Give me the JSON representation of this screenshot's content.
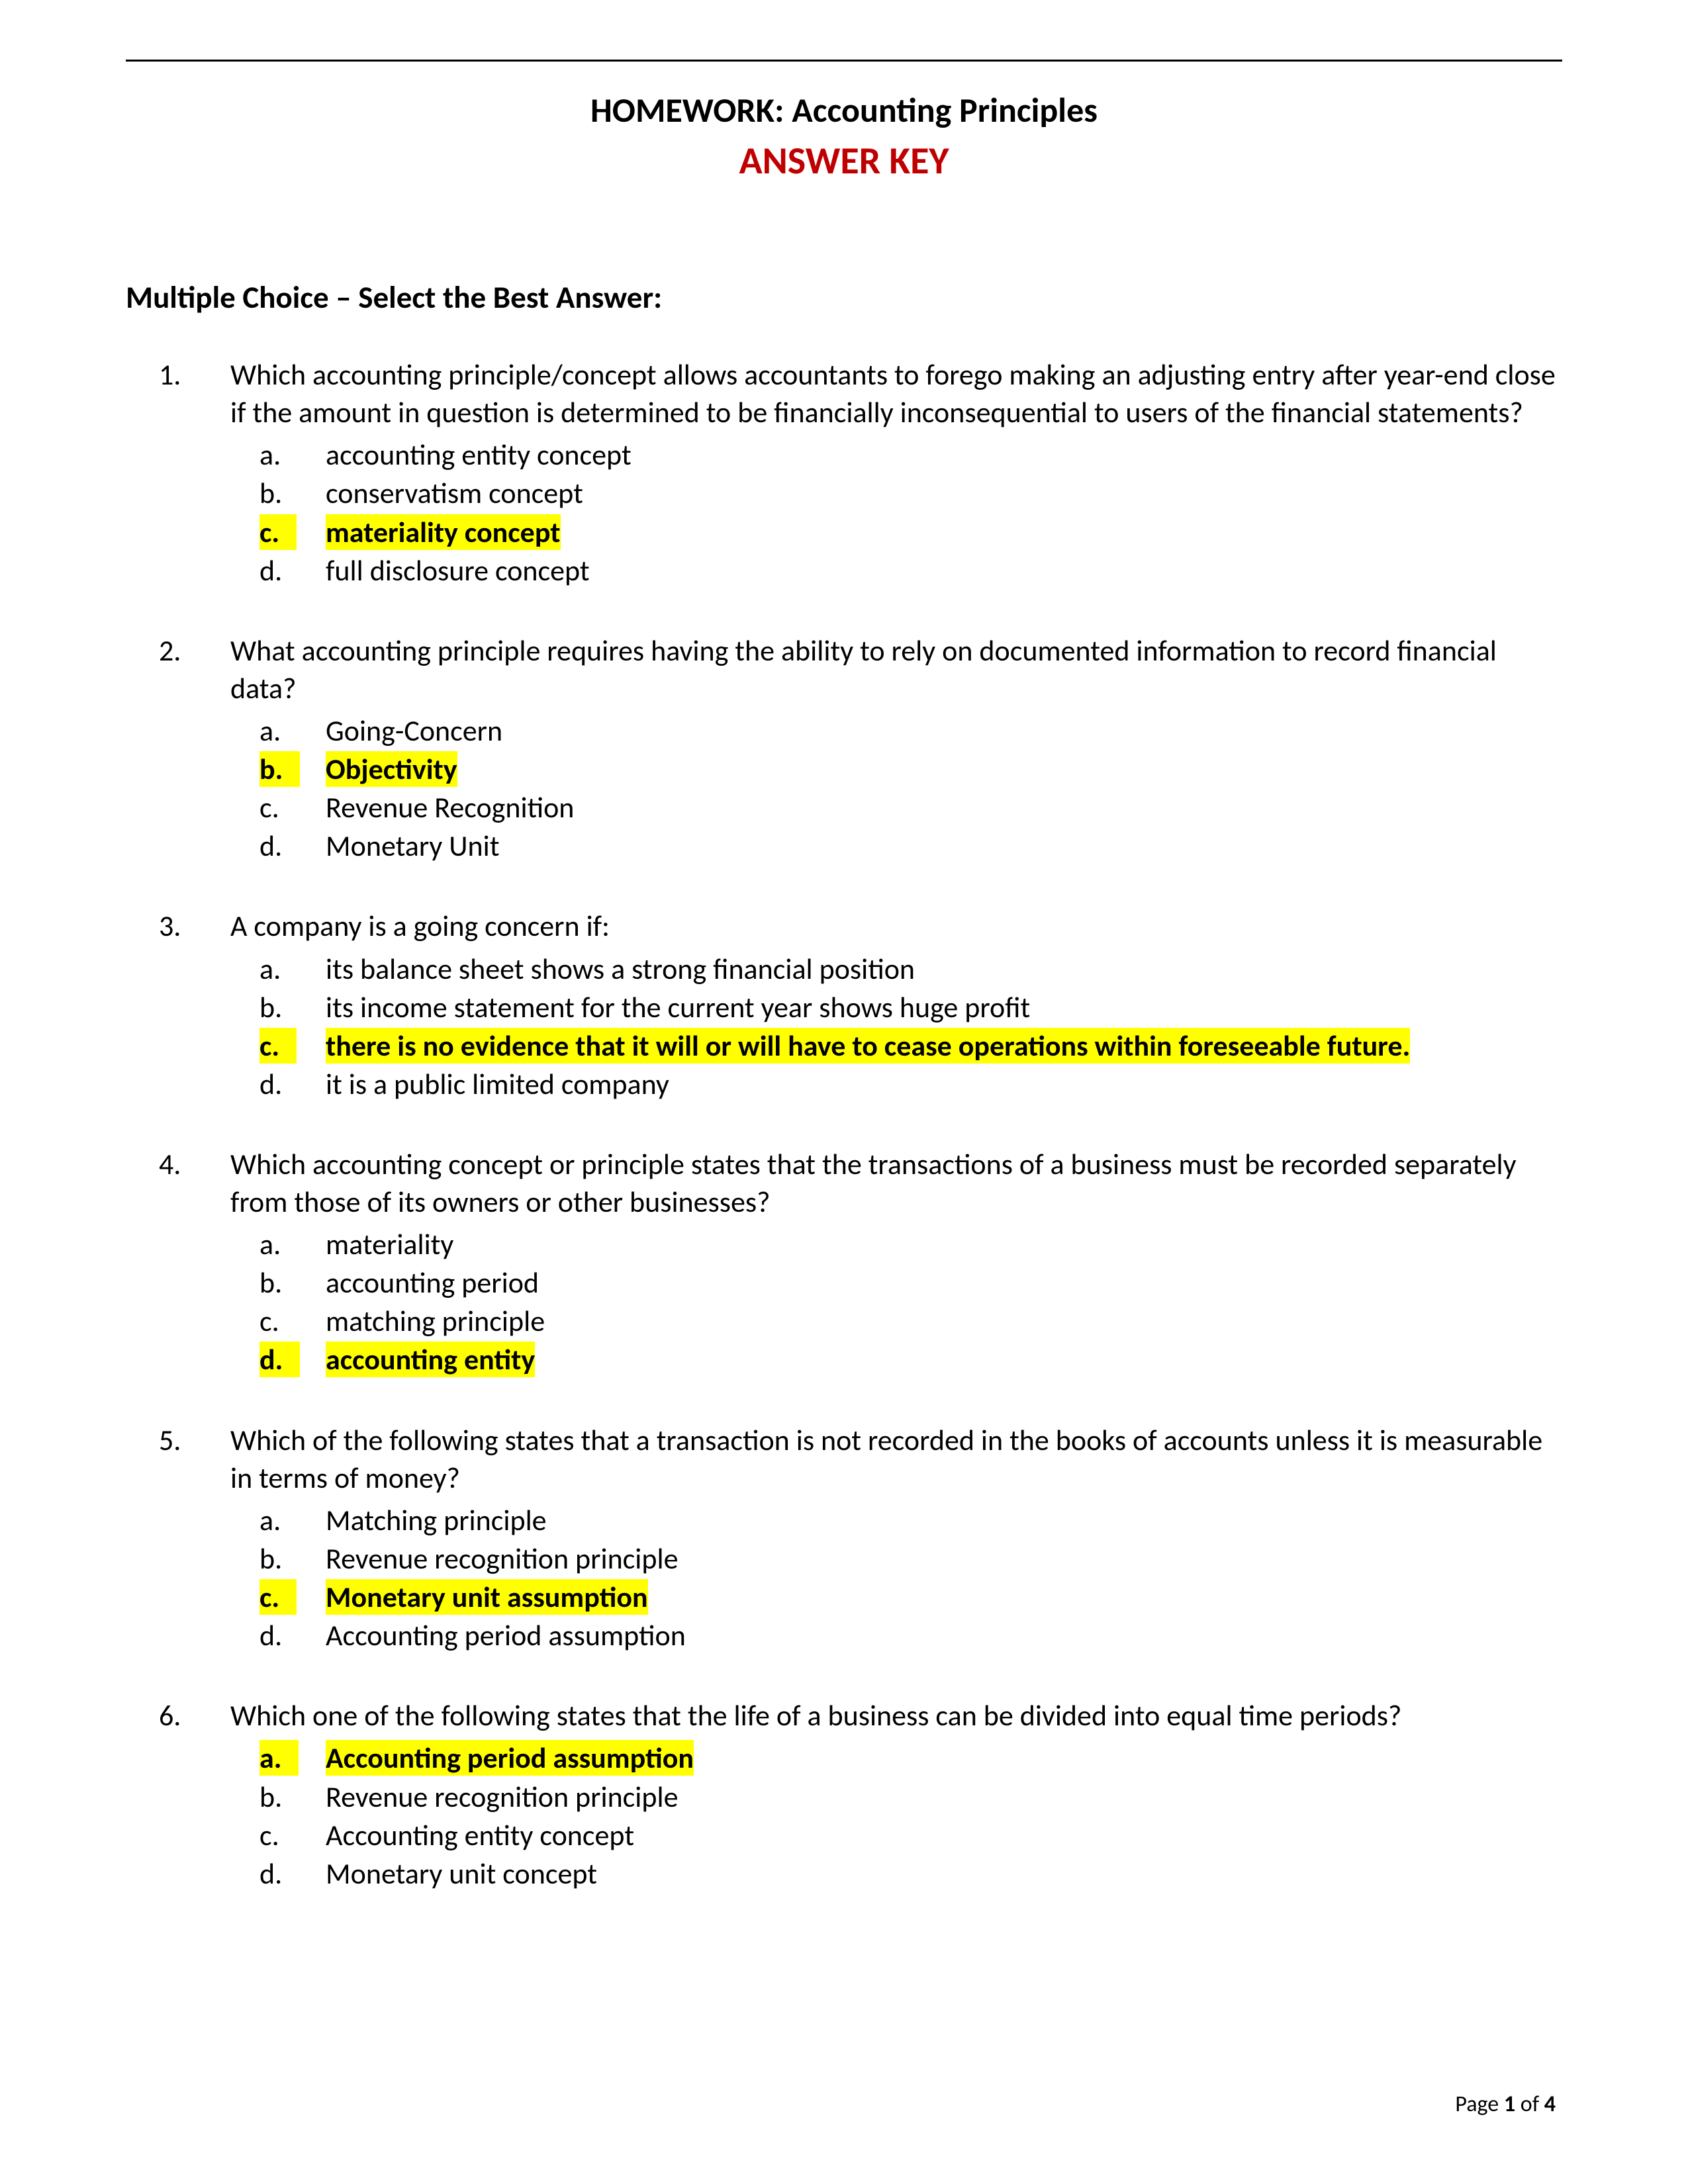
{
  "colors": {
    "highlight": "#ffff00",
    "answer_key_color": "#c00000",
    "text_color": "#000000",
    "background": "#ffffff",
    "rule_color": "#000000"
  },
  "typography": {
    "body_font": "Calibri, Arial, sans-serif",
    "title_size_pt": 20,
    "subtitle_size_pt": 22,
    "section_size_pt": 18,
    "body_size_pt": 17
  },
  "header": {
    "title": "HOMEWORK:  Accounting Principles",
    "subtitle": "ANSWER KEY"
  },
  "section_heading": "Multiple Choice – Select the Best Answer:",
  "questions": [
    {
      "num": "1.",
      "text": "Which accounting principle/concept allows accountants to forego making an adjusting entry after year-end close if the amount in question is determined to be financially inconsequential to users of the financial statements?",
      "options": [
        {
          "letter": "a.",
          "text": "accounting entity concept",
          "correct": false
        },
        {
          "letter": "b.",
          "text": "conservatism concept",
          "correct": false
        },
        {
          "letter": "c.",
          "text": "materiality concept",
          "correct": true
        },
        {
          "letter": "d.",
          "text": "full disclosure concept",
          "correct": false
        }
      ]
    },
    {
      "num": "2.",
      "text": "What accounting principle requires having the ability to rely on documented information to record financial data?",
      "options": [
        {
          "letter": "a.",
          "text": "Going-Concern",
          "correct": false
        },
        {
          "letter": "b.",
          "text": "Objectivity",
          "correct": true
        },
        {
          "letter": "c.",
          "text": "Revenue Recognition",
          "correct": false
        },
        {
          "letter": "d.",
          "text": "Monetary Unit",
          "correct": false
        }
      ]
    },
    {
      "num": "3.",
      "text": "A company is a going concern if:",
      "options": [
        {
          "letter": "a.",
          "text": "its balance sheet shows a strong financial position",
          "correct": false
        },
        {
          "letter": "b.",
          "text": "its income statement for the current year shows huge profit",
          "correct": false
        },
        {
          "letter": "c.",
          "text": "there is no evidence that it will or will have to cease operations within foreseeable future.",
          "correct": true
        },
        {
          "letter": "d.",
          "text": "it is a public limited company",
          "correct": false
        }
      ]
    },
    {
      "num": "4.",
      "text": "Which accounting concept or principle states that the transactions of a business must be recorded separately from those of its owners or other businesses?",
      "options": [
        {
          "letter": "a.",
          "text": "materiality",
          "correct": false
        },
        {
          "letter": "b.",
          "text": "accounting period",
          "correct": false
        },
        {
          "letter": "c.",
          "text": "matching principle",
          "correct": false
        },
        {
          "letter": "d.",
          "text": "accounting entity",
          "correct": true
        }
      ]
    },
    {
      "num": "5.",
      "text": "Which of the following states that a transaction is not recorded in the books of accounts unless it is measurable in terms of money?",
      "options": [
        {
          "letter": "a.",
          "text": "Matching principle",
          "correct": false
        },
        {
          "letter": "b.",
          "text": "Revenue recognition principle",
          "correct": false
        },
        {
          "letter": "c.",
          "text": "Monetary unit assumption",
          "correct": true
        },
        {
          "letter": "d.",
          "text": "Accounting period assumption",
          "correct": false
        }
      ]
    },
    {
      "num": "6.",
      "text": "Which one of the following states that the life of a business can be divided into equal time periods?",
      "options": [
        {
          "letter": "a.",
          "text": "Accounting period assumption",
          "correct": true
        },
        {
          "letter": "b.",
          "text": "Revenue recognition principle",
          "correct": false
        },
        {
          "letter": "c.",
          "text": "Accounting entity concept",
          "correct": false
        },
        {
          "letter": "d.",
          "text": "Monetary unit concept",
          "correct": false
        }
      ]
    }
  ],
  "footer": {
    "prefix": "Page ",
    "current": "1",
    "of": " of ",
    "total": "4"
  }
}
